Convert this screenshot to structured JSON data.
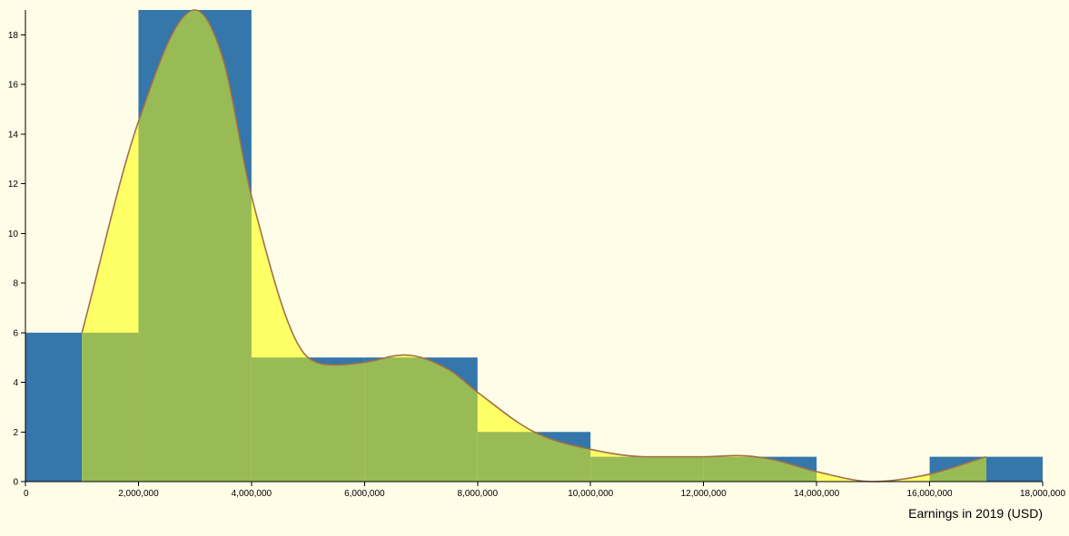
{
  "chart_data": {
    "type": "bar",
    "subtype": "histogram-with-density-curve",
    "xlabel": "Earnings in 2019 (USD)",
    "ylabel": "",
    "xlim": [
      0,
      18000000
    ],
    "ylim": [
      0,
      19
    ],
    "x_ticks": [
      "0",
      "2,000,000",
      "4,000,000",
      "6,000,000",
      "8,000,000",
      "10,000,000",
      "12,000,000",
      "14,000,000",
      "16,000,000",
      "18,000,000"
    ],
    "y_ticks": [
      "0",
      "2",
      "4",
      "6",
      "8",
      "10",
      "12",
      "14",
      "16",
      "18"
    ],
    "bins": [
      {
        "x0": 0,
        "x1": 2000000,
        "count": 6
      },
      {
        "x0": 2000000,
        "x1": 4000000,
        "count": 19
      },
      {
        "x0": 4000000,
        "x1": 6000000,
        "count": 5
      },
      {
        "x0": 6000000,
        "x1": 8000000,
        "count": 5
      },
      {
        "x0": 8000000,
        "x1": 10000000,
        "count": 2
      },
      {
        "x0": 10000000,
        "x1": 12000000,
        "count": 1
      },
      {
        "x0": 12000000,
        "x1": 14000000,
        "count": 1
      },
      {
        "x0": 14000000,
        "x1": 16000000,
        "count": 0
      },
      {
        "x0": 16000000,
        "x1": 18000000,
        "count": 1
      }
    ],
    "density_curve": {
      "x": [
        1000000,
        2000000,
        3000000,
        3500000,
        4000000,
        5000000,
        5500000,
        6000000,
        6700000,
        7500000,
        8000000,
        9000000,
        10000000,
        11000000,
        12000000,
        12600000,
        13200000,
        14000000,
        15000000,
        16000000,
        17000000
      ],
      "y": [
        6,
        14.5,
        19,
        17,
        11.5,
        5,
        4.7,
        4.8,
        5.1,
        4.5,
        3.6,
        2,
        1.3,
        1,
        1,
        1.05,
        0.9,
        0.4,
        0,
        0.3,
        1
      ]
    },
    "colors": {
      "background": "#fffde8",
      "bar": "#3576ab",
      "curve_fill": "#ffff66",
      "overlap_fill": "#99bb55",
      "curve_stroke": "#a0704a"
    },
    "grid": false
  }
}
